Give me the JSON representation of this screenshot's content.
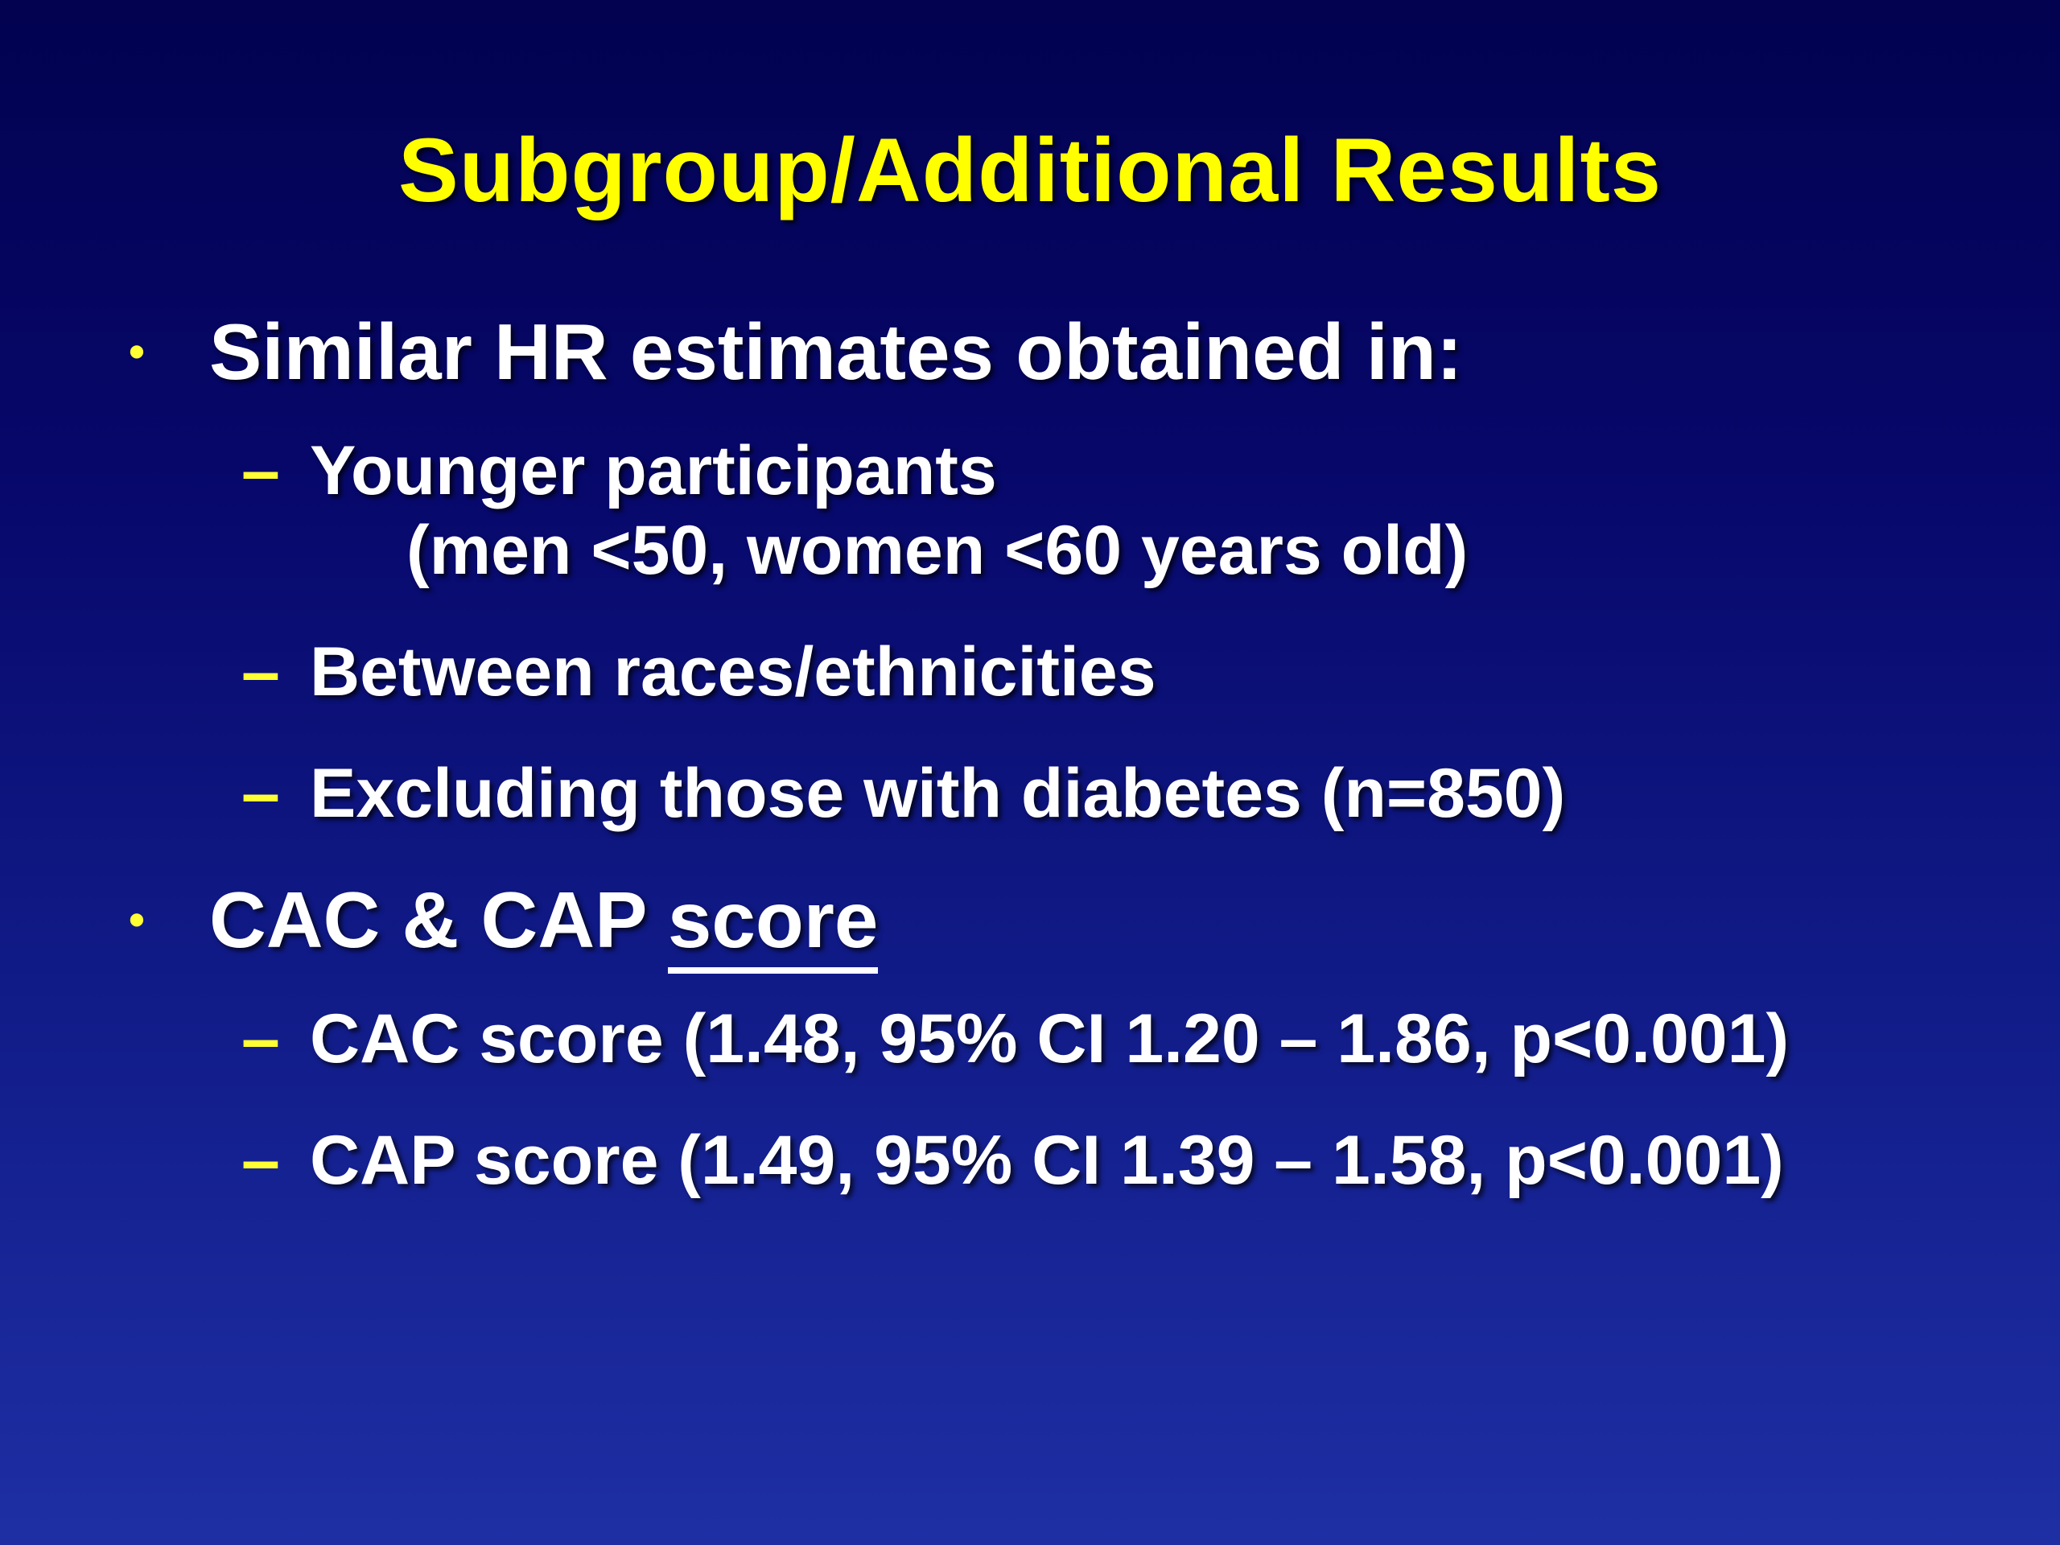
{
  "slide": {
    "title": "Subgroup/Additional Results",
    "glyphs": {
      "level1": "•",
      "level2": "–"
    },
    "bullets": {
      "0": {
        "text": "Similar HR estimates obtained in:",
        "subitems": {
          "0": {
            "line1": "Younger participants",
            "line2": "(men <50, women <60 years old)"
          },
          "1": {
            "line1": "Between races/ethnicities"
          },
          "2": {
            "line1": "Excluding those with diabetes (n=850)"
          }
        }
      },
      "1": {
        "text_prefix": "CAC & CAP ",
        "text_underlined": "score",
        "subitems": {
          "0": {
            "line1": "CAC score (1.48, 95% CI 1.20 – 1.86, p<0.001)"
          },
          "1": {
            "line1": "CAP score (1.49, 95% CI 1.39 – 1.58, p<0.001)"
          }
        }
      }
    },
    "colors": {
      "background_top": "#020250",
      "background_bottom": "#1e2fa4",
      "title": "#ffff00",
      "body_text": "#ffffff",
      "bullet": "#ffff33"
    }
  }
}
